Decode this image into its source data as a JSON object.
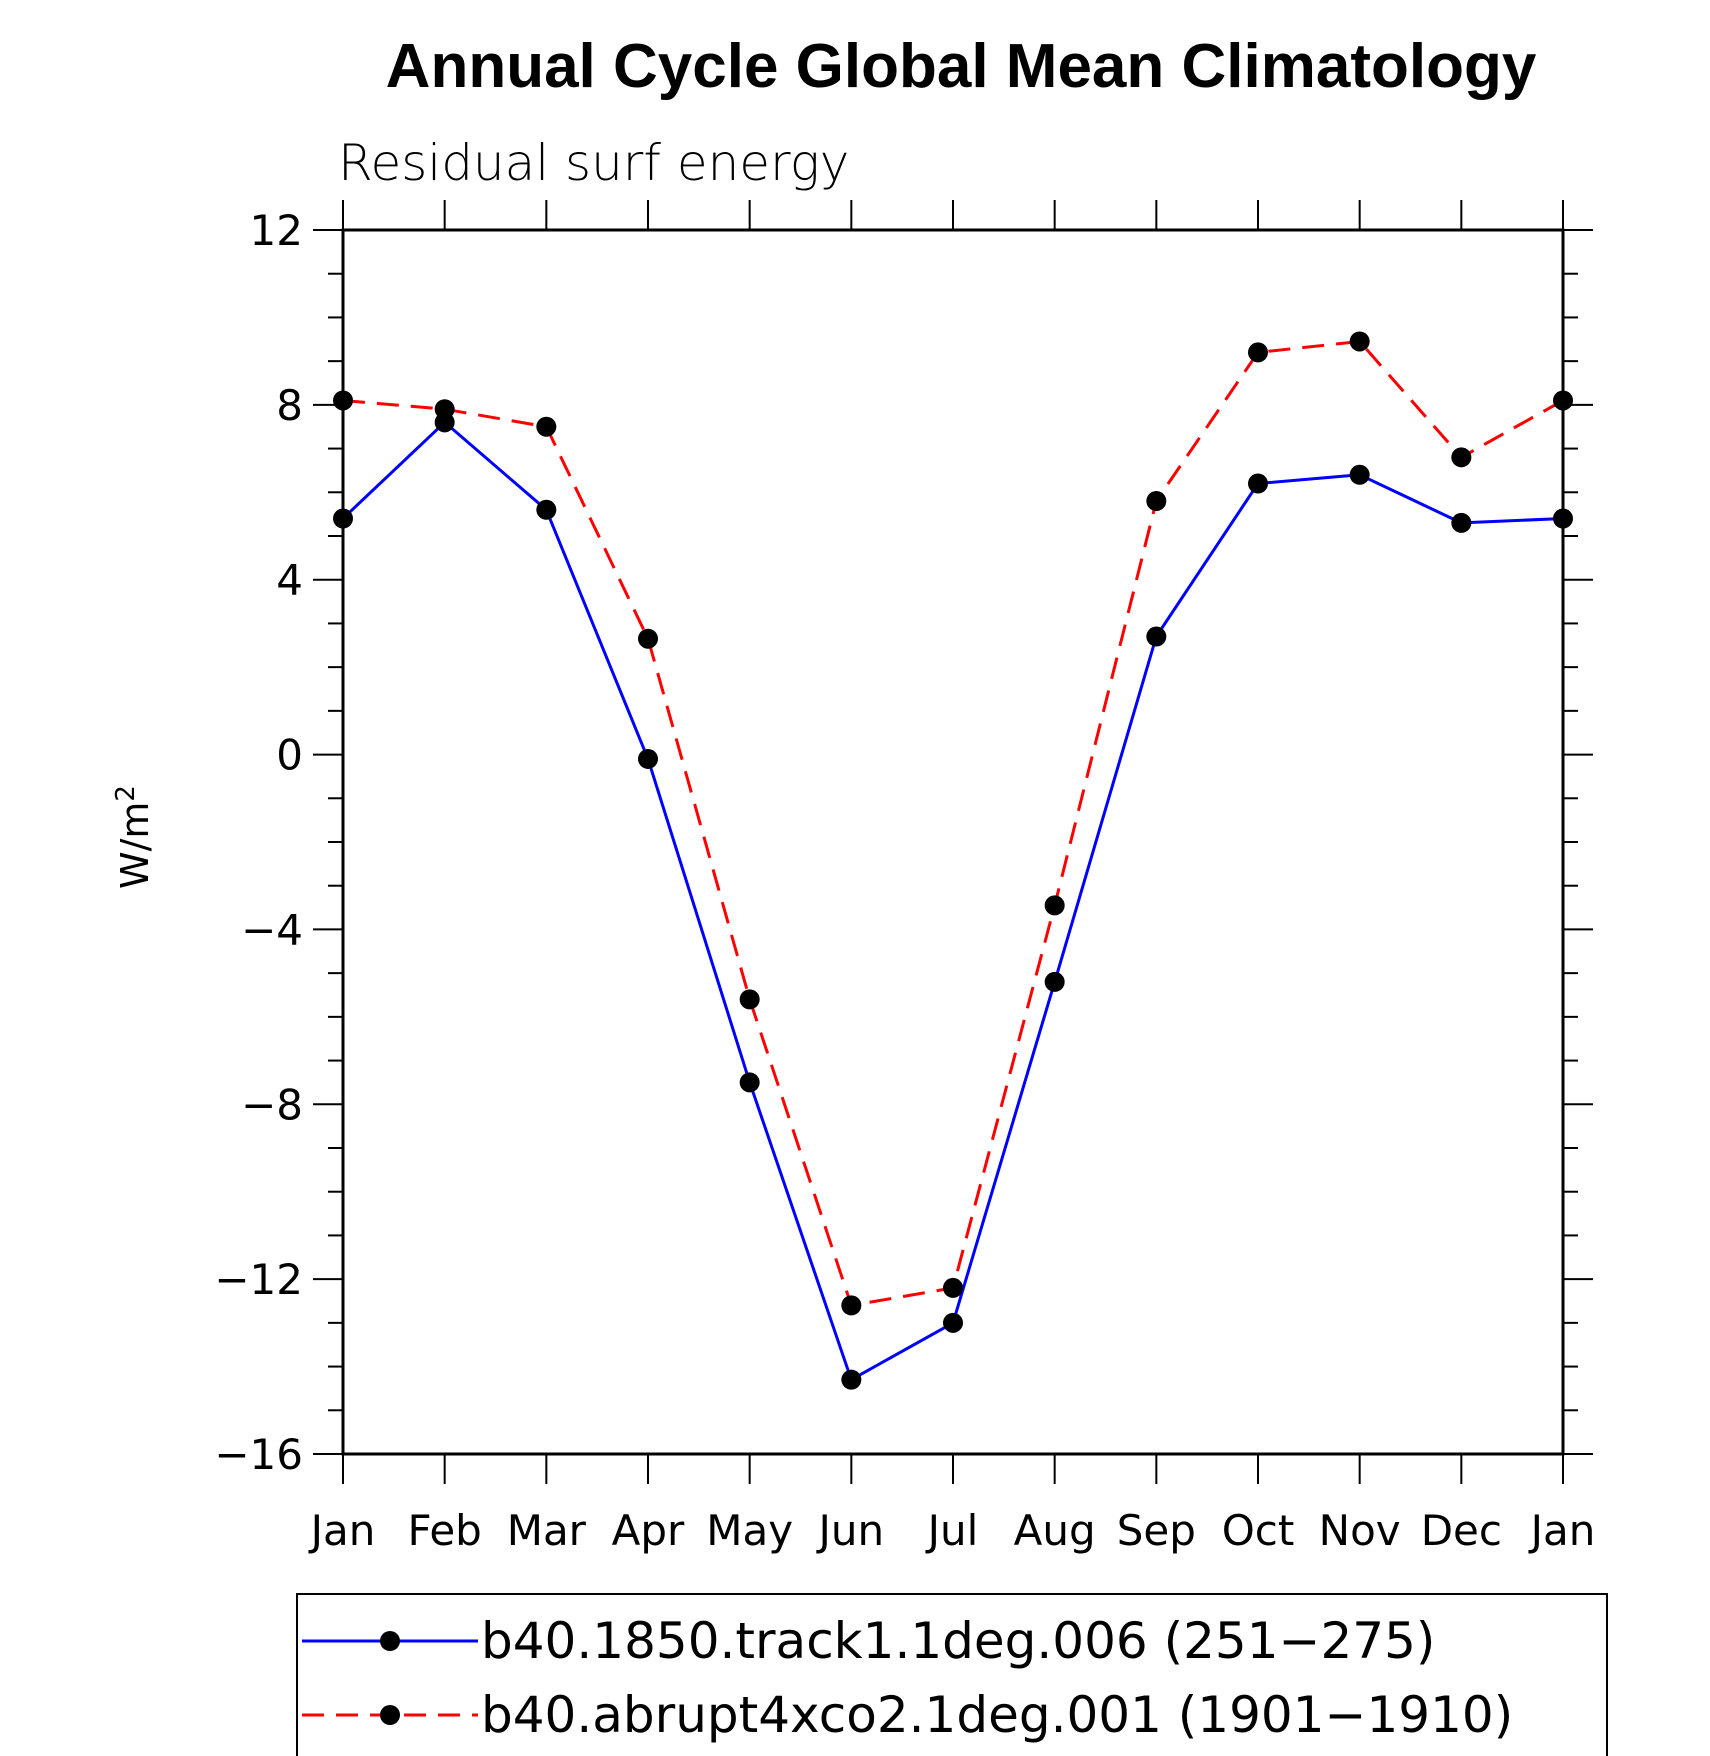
{
  "chart_data": {
    "type": "line",
    "title": "Annual Cycle Global Mean Climatology",
    "subtitle": "Residual surf energy",
    "ylabel": "W/m",
    "ylabel_superscript": "2",
    "xlabel": "",
    "categories": [
      "Jan",
      "Feb",
      "Mar",
      "Apr",
      "May",
      "Jun",
      "Jul",
      "Aug",
      "Sep",
      "Oct",
      "Nov",
      "Dec",
      "Jan"
    ],
    "ylim": [
      -16,
      12
    ],
    "yticks": [
      -16,
      -12,
      -8,
      -4,
      0,
      4,
      8,
      12
    ],
    "ytick_labels": [
      "−16",
      "−12",
      "−8",
      "−4",
      "0",
      "4",
      "8",
      "12"
    ],
    "series": [
      {
        "name": "b40.1850.track1.1deg.006 (251−275)",
        "color": "#0000ff",
        "line_style": "solid",
        "marker": "filled-circle",
        "marker_color": "#000000",
        "values": [
          5.4,
          7.6,
          5.6,
          -0.1,
          -7.5,
          -14.3,
          -13.0,
          -5.2,
          2.7,
          6.2,
          6.4,
          5.3,
          5.4
        ]
      },
      {
        "name": "b40.abrupt4xco2.1deg.001 (1901−1910)",
        "color": "#ff0000",
        "line_style": "dashed",
        "marker": "filled-circle",
        "marker_color": "#000000",
        "values": [
          8.1,
          7.9,
          7.5,
          2.65,
          -5.6,
          -12.6,
          -12.2,
          -3.45,
          5.8,
          9.2,
          9.45,
          6.8,
          8.1
        ]
      }
    ],
    "grid": false,
    "legend_position": "bottom"
  }
}
